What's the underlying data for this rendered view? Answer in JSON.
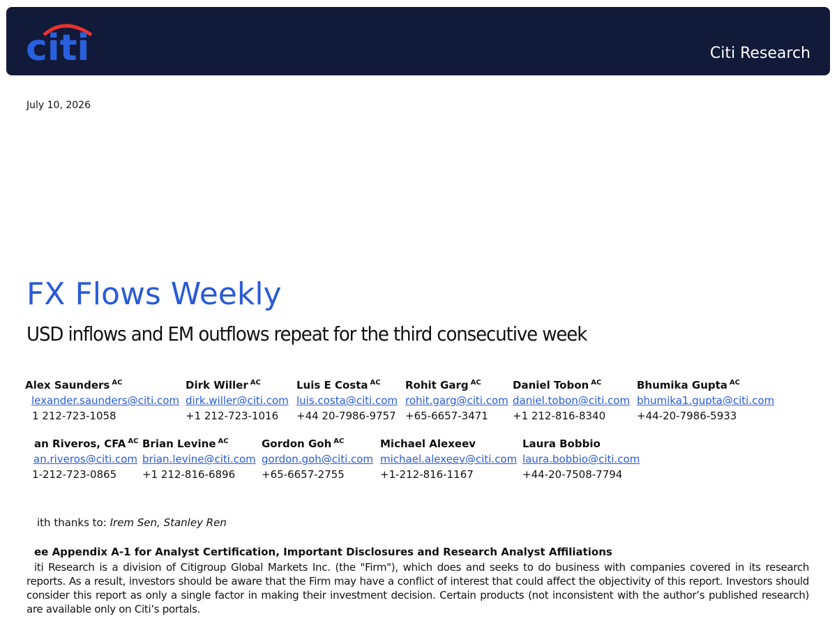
{
  "header": {
    "logo": "citi",
    "brand": "Citi Research"
  },
  "date": "July 10, 2026",
  "title": "FX Flows Weekly",
  "subtitle": "USD inflows and EM outflows repeat for the third consecutive week",
  "authors": [
    [
      {
        "name": "Alex Saunders",
        "badge": "AC",
        "email": "lexander.saunders@citi.com",
        "phone": "1 212-723-1058"
      },
      {
        "name": "Dirk Willer",
        "badge": "AC",
        "email": "dirk.willer@citi.com",
        "phone": "+1 212-723-1016"
      },
      {
        "name": "Luis E Costa",
        "badge": "AC",
        "email": "luis.costa@citi.com",
        "phone": "+44 20-7986-9757"
      },
      {
        "name": "Rohit Garg",
        "badge": "AC",
        "email": "rohit.garg@citi.com",
        "phone": "+65-6657-3471"
      },
      {
        "name": "Daniel Tobon",
        "badge": "AC",
        "email": "daniel.tobon@citi.com",
        "phone": "+1 212-816-8340"
      },
      {
        "name": "Bhumika Gupta",
        "badge": "AC",
        "email": "bhumika1.gupta@citi.com",
        "phone": "+44-20-7986-5933"
      }
    ],
    [
      {
        "name": "an Riveros, CFA",
        "badge": "AC",
        "email": "an.riveros@citi.com",
        "phone": "1-212-723-0865"
      },
      {
        "name": "Brian Levine",
        "badge": "AC",
        "email": "brian.levine@citi.com",
        "phone": "+1 212-816-6896"
      },
      {
        "name": "Gordon Goh",
        "badge": "AC",
        "email": "gordon.goh@citi.com",
        "phone": "+65-6657-2755"
      },
      {
        "name": "Michael Alexeev",
        "email": "michael.alexeev@citi.com",
        "phone": "+1-212-816-1167"
      },
      {
        "name": "Laura Bobbio",
        "email": "laura.bobbio@citi.com",
        "phone": "+44-20-7508-7794"
      }
    ]
  ],
  "thanks": {
    "label": "ith thanks to:",
    "names": "Irem Sen, Stanley Ren"
  },
  "disclosure": {
    "heading": "ee Appendix A-1 for Analyst Certification, Important Disclosures and Research Analyst Affiliations",
    "body": "iti Research is a division of Citigroup Global Markets Inc. (the \"Firm\"), which does and seeks to do business with companies covered in its research reports. As a result, investors should be aware that the Firm may have a conflict of interest that could affect the objectivity of this report. Investors should consider this report as only a single factor in making their investment decision.  Certain products (not inconsistent with the author’s published research) are available only on Citi’s portals."
  }
}
